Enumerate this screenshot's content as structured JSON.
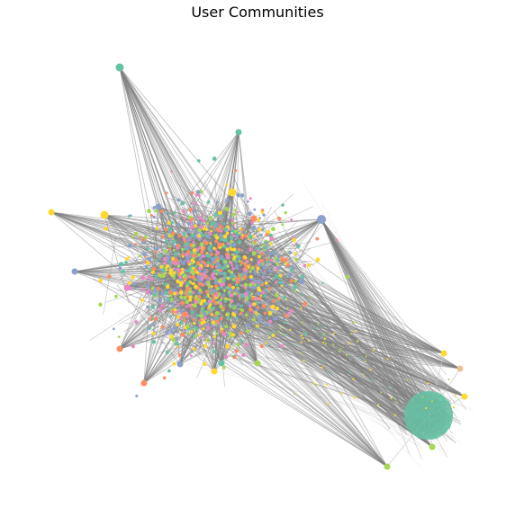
{
  "title": "User Communities",
  "colors": {
    "edge": "#808080",
    "edge_light": "#c8c8c8",
    "teal": "#66c2a5",
    "orange": "#fc8d62",
    "blue": "#8da0cb",
    "pink": "#e78ac3",
    "green": "#a6d854",
    "yellow": "#ffd92f",
    "tan": "#e5c494"
  }
}
